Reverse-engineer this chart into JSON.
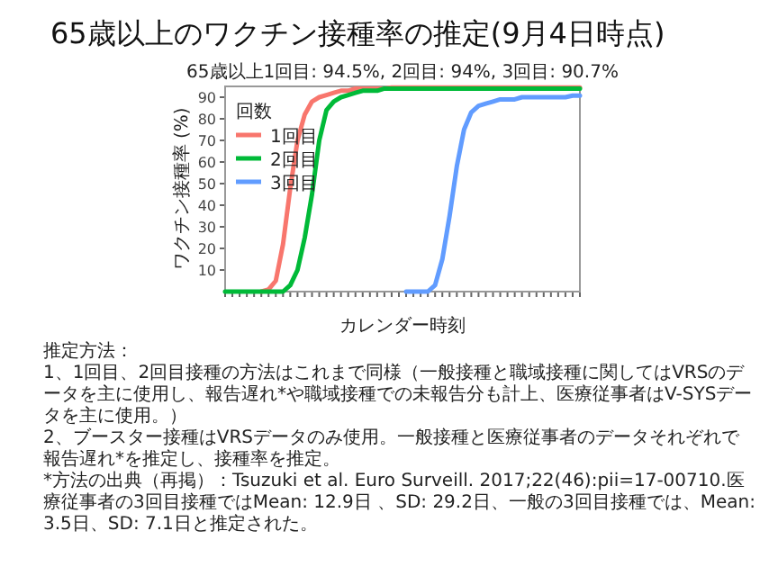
{
  "chart_data": {
    "type": "line",
    "title": "65歳以上のワクチン接種率の推定(9月4日時点)",
    "subtitle": "65歳以上1回目: 94.5%, 2回目: 94%, 3回目: 90.7%",
    "xlabel": "カレンダー時刻",
    "ylabel": "ワクチン接種率 (%)",
    "legend_title": "回数",
    "legend": "top left",
    "tick_labels": "y",
    "marker": "none",
    "line_style": "solid",
    "ylim": [
      0,
      95
    ],
    "yticks": [
      10,
      20,
      30,
      40,
      50,
      60,
      70,
      80,
      90
    ],
    "categories": [
      null,
      null,
      null,
      null,
      null,
      null,
      null,
      null,
      null,
      null,
      null,
      null,
      null,
      null,
      null,
      null,
      null,
      null,
      null,
      null,
      null,
      null,
      null,
      null,
      null,
      null,
      null,
      null,
      null,
      null,
      null,
      null,
      null,
      null,
      null,
      null,
      null,
      null,
      null,
      null,
      null,
      null,
      null,
      null,
      null,
      null,
      null,
      null,
      null,
      null
    ],
    "series": [
      {
        "name": "1回目",
        "color": "#f8766d",
        "values": [
          null,
          null,
          null,
          null,
          null,
          0,
          1,
          5,
          22,
          48,
          70,
          82,
          88,
          90,
          91,
          92,
          93,
          93,
          94,
          94,
          94,
          94,
          94,
          94.5,
          94.5,
          94.5,
          94.5,
          94.5,
          94.5,
          94.5,
          94.5,
          94.5,
          94.5,
          94.5,
          94.5,
          94.5,
          94.5,
          94.5,
          94.5,
          94.5,
          94.5,
          94.5,
          94.5,
          94.5,
          94.5,
          94.5,
          94.5,
          94.5,
          94.5,
          94.5
        ]
      },
      {
        "name": "2回目",
        "color": "#00ba38",
        "values": [
          0,
          0,
          0,
          0,
          0,
          0,
          0,
          0,
          0,
          3,
          10,
          25,
          45,
          70,
          84,
          88,
          90,
          91,
          92,
          93,
          93,
          93,
          94,
          94,
          94,
          94,
          94,
          94,
          94,
          94,
          94,
          94,
          94,
          94,
          94,
          94,
          94,
          94,
          94,
          94,
          94,
          94,
          94,
          94,
          94,
          94,
          94,
          94,
          94,
          94
        ]
      },
      {
        "name": "3回目",
        "color": "#619cff",
        "values": [
          null,
          null,
          null,
          null,
          null,
          null,
          null,
          null,
          null,
          null,
          null,
          null,
          null,
          null,
          null,
          null,
          null,
          null,
          null,
          null,
          null,
          null,
          null,
          null,
          null,
          0,
          0,
          0,
          0,
          3,
          15,
          35,
          58,
          75,
          83,
          86,
          87,
          88,
          89,
          89,
          89,
          90,
          90,
          90,
          90,
          90,
          90,
          90,
          90.7,
          90.7
        ]
      }
    ],
    "annotations": [
      "推定方法：",
      "1、1回目、2回目接種の方法はこれまで同様（一般接種と職域接種に関してはVRSのデータを主に使用し、報告遅れ*や職域接種での未報告分も計上、医療従事者はV-SYSデータを主に使用。）",
      "2、ブースター接種はVRSデータのみ使用。一般接種と医療従事者のデータそれぞれで報告遅れ*を推定し、接種率を推定。",
      "*方法の出典（再掲）：Tsuzuki et al. Euro Surveill. 2017;22(46):pii=17-00710.医療従事者の3回目接種ではMean: 12.9日 、SD: 29.2日、一般の3回目接種では、Mean: 3.5日、SD: 7.1日と推定された。"
    ]
  }
}
